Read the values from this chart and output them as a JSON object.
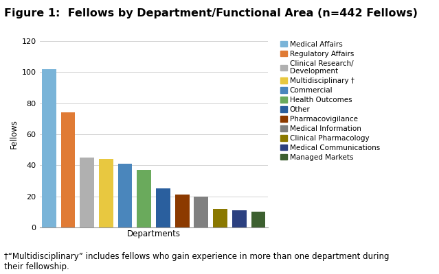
{
  "title": "Figure 1:  Fellows by Department/Functional Area (n=442 Fellows)",
  "xlabel": "Departments",
  "ylabel": "Fellows",
  "footnote": "†“Multidisciplinary” includes fellows who gain experience in more than one department during\ntheir fellowship.",
  "categories": [
    "Medical Affairs",
    "Regulatory Affairs",
    "Clinical Research/\nDevelopment",
    "Multidisciplinary †",
    "Commercial",
    "Health Outcomes",
    "Other",
    "Pharmacovigilance",
    "Medical Information",
    "Clinical Pharmacology",
    "Medical Communications",
    "Managed Markets"
  ],
  "values": [
    102,
    74,
    45,
    44,
    41,
    37,
    25,
    21,
    20,
    12,
    11,
    10
  ],
  "colors": [
    "#7ab4d8",
    "#e07b35",
    "#b0b0b0",
    "#e8c840",
    "#4a86bc",
    "#6aaa5c",
    "#2a5f9e",
    "#8c3a00",
    "#808080",
    "#8a7800",
    "#2c4080",
    "#3d6030"
  ],
  "ylim": [
    0,
    120
  ],
  "yticks": [
    0,
    20,
    40,
    60,
    80,
    100,
    120
  ],
  "legend_labels": [
    "Medical Affairs",
    "Regulatory Affairs",
    "Clinical Research/\nDevelopment",
    "Multidisciplinary †",
    "Commercial",
    "Health Outcomes",
    "Other",
    "Pharmacovigilance",
    "Medical Information",
    "Clinical Pharmacology",
    "Medical Communications",
    "Managed Markets"
  ],
  "background_color": "#ffffff",
  "title_fontsize": 11.5,
  "axis_label_fontsize": 8.5,
  "tick_fontsize": 8,
  "legend_fontsize": 7.5,
  "footnote_fontsize": 8.5
}
